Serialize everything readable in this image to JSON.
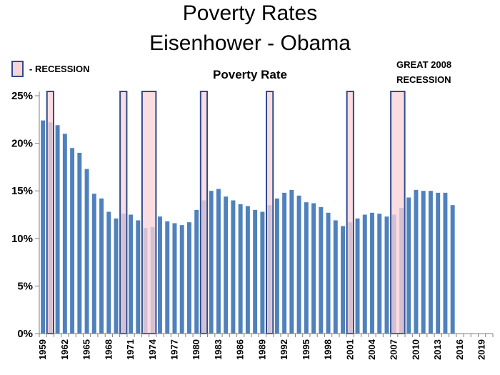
{
  "chart_data": {
    "type": "bar",
    "title": "Poverty Rates",
    "subtitle": "Eisenhower - Obama",
    "series_title": "Poverty Rate",
    "legend_label": "- RECESSION",
    "annotation": [
      "GREAT 2008",
      "RECESSION"
    ],
    "ylim": [
      0,
      25
    ],
    "y_ticks": [
      "0%",
      "5%",
      "10%",
      "15%",
      "20%",
      "25%"
    ],
    "y_tick_values": [
      0,
      5,
      10,
      15,
      20,
      25
    ],
    "x_tick_labels": [
      "1959",
      "1962",
      "1965",
      "1968",
      "1971",
      "1974",
      "1977",
      "1980",
      "1983",
      "1986",
      "1989",
      "1992",
      "1995",
      "1998",
      "2001",
      "2004",
      "2007",
      "2010",
      "2013",
      "2016",
      "2019"
    ],
    "x_start": 1959,
    "x_end": 2021,
    "years": [
      1959,
      1960,
      1961,
      1962,
      1963,
      1964,
      1965,
      1966,
      1967,
      1968,
      1969,
      1970,
      1971,
      1972,
      1973,
      1974,
      1975,
      1976,
      1977,
      1978,
      1979,
      1980,
      1981,
      1982,
      1983,
      1984,
      1985,
      1986,
      1987,
      1988,
      1989,
      1990,
      1991,
      1992,
      1993,
      1994,
      1995,
      1996,
      1997,
      1998,
      1999,
      2000,
      2001,
      2002,
      2003,
      2004,
      2005,
      2006,
      2007,
      2008,
      2009,
      2010,
      2011,
      2012,
      2013,
      2014,
      2015
    ],
    "values": [
      22.4,
      22.2,
      21.9,
      21.0,
      19.5,
      19.0,
      17.3,
      14.7,
      14.2,
      12.8,
      12.1,
      12.6,
      12.5,
      11.9,
      11.1,
      11.2,
      12.3,
      11.8,
      11.6,
      11.4,
      11.7,
      13.0,
      14.0,
      15.0,
      15.2,
      14.4,
      14.0,
      13.6,
      13.4,
      13.0,
      12.8,
      13.5,
      14.2,
      14.8,
      15.1,
      14.5,
      13.8,
      13.7,
      13.3,
      12.7,
      11.9,
      11.3,
      11.7,
      12.1,
      12.5,
      12.7,
      12.6,
      12.3,
      12.5,
      13.2,
      14.3,
      15.1,
      15.0,
      15.0,
      14.8,
      14.8,
      13.5
    ],
    "recessions": [
      [
        1960,
        1960
      ],
      [
        1970,
        1970
      ],
      [
        1973,
        1974
      ],
      [
        1981,
        1981
      ],
      [
        1990,
        1990
      ],
      [
        2001,
        2001
      ],
      [
        2007,
        2008
      ]
    ],
    "colors": {
      "bar": "#4F81BD",
      "recession_fill": "#F8D3D8",
      "recession_stroke": "#2F4A8C",
      "axis": "#808080"
    }
  }
}
